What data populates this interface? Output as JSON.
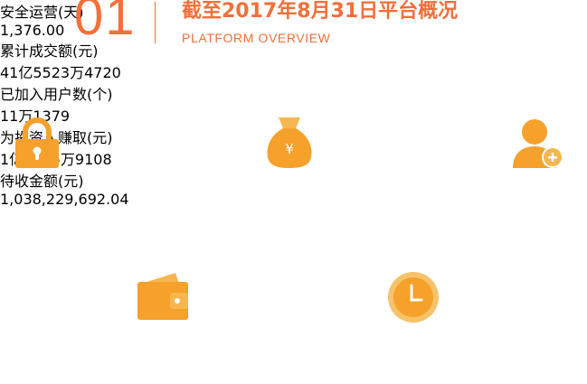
{
  "header": {
    "number": "01",
    "title": "截至2017年8月31日平台概况",
    "subtitle": "PLATFORM OVERVIEW"
  },
  "stats": {
    "safe_days": {
      "label": "安全运营(天)",
      "value": "1,376.00",
      "icon": "lock-icon"
    },
    "total_volume": {
      "label": "累计成交额(元)",
      "value": "41亿5523万4720",
      "icon": "money-bag-icon"
    },
    "registered_users": {
      "label": "已加入用户数(个)",
      "value": "11万1379",
      "icon": "add-user-icon"
    },
    "investor_earnings": {
      "label": "为投资人赚取(元)",
      "value": "1亿5255万9108",
      "icon": "wallet-icon"
    },
    "pending_collection": {
      "label": "待收金额(元)",
      "value": "1,038,229,692.04",
      "icon": "clock-icon"
    }
  },
  "colors": {
    "accent": "#f36f3a",
    "icon": "#f5a12b",
    "value": "#f39c1e"
  }
}
